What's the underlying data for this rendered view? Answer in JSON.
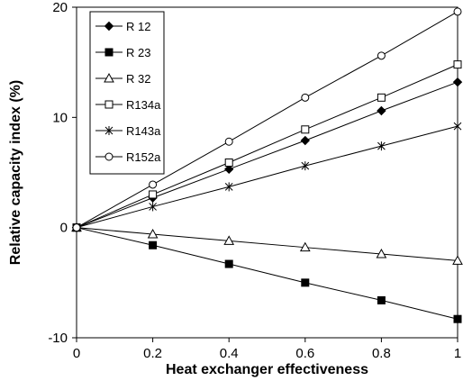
{
  "chart_data": {
    "type": "line",
    "title": "",
    "xlabel": "Heat exchanger effectiveness",
    "ylabel": "Relative capacity index (%)",
    "xlim": [
      0,
      1
    ],
    "ylim": [
      -10,
      20
    ],
    "xticks": [
      0,
      0.2,
      0.4,
      0.6,
      0.8,
      1
    ],
    "xtick_labels": [
      "0",
      "0.2",
      "0.4",
      "0.6",
      "0.8",
      "1"
    ],
    "yticks": [
      -10,
      0,
      10,
      20
    ],
    "ytick_labels": [
      "-10",
      "0",
      "10",
      "20"
    ],
    "grid": false,
    "legend_position": "top-left",
    "x": [
      0,
      0.2,
      0.4,
      0.6,
      0.8,
      1.0
    ],
    "series": [
      {
        "name": "R 12",
        "marker": "diamond-filled",
        "values": [
          0,
          2.7,
          5.3,
          7.9,
          10.6,
          13.2
        ]
      },
      {
        "name": "R 23",
        "marker": "square-filled",
        "values": [
          0,
          -1.6,
          -3.3,
          -5.0,
          -6.6,
          -8.3
        ]
      },
      {
        "name": "R 32",
        "marker": "triangle-open",
        "values": [
          0,
          -0.6,
          -1.2,
          -1.8,
          -2.4,
          -3.0
        ]
      },
      {
        "name": "R134a",
        "marker": "square-open",
        "values": [
          0,
          3.0,
          5.9,
          8.9,
          11.8,
          14.8
        ]
      },
      {
        "name": "R143a",
        "marker": "asterisk",
        "values": [
          0,
          1.9,
          3.7,
          5.6,
          7.4,
          9.2
        ]
      },
      {
        "name": "R152a",
        "marker": "circle-open",
        "values": [
          0,
          3.9,
          7.8,
          11.8,
          15.6,
          19.6
        ]
      }
    ]
  }
}
